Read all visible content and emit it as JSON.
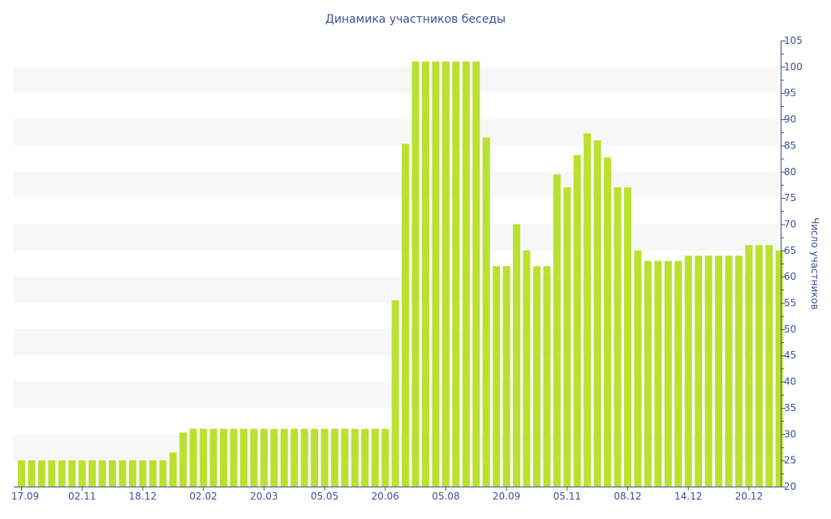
{
  "chart_data": {
    "type": "bar",
    "title": "Динамика участников беседы",
    "xlabel": "",
    "ylabel": "Число участников",
    "ylim": [
      20,
      105
    ],
    "yticks": [
      20,
      25,
      30,
      35,
      40,
      45,
      50,
      55,
      60,
      65,
      70,
      75,
      80,
      85,
      90,
      95,
      100,
      105
    ],
    "x_tick_labels": [
      {
        "bar_index": 0,
        "label": "17.09"
      },
      {
        "bar_index": 6,
        "label": "02.11"
      },
      {
        "bar_index": 12,
        "label": "18.12"
      },
      {
        "bar_index": 18,
        "label": "02.02"
      },
      {
        "bar_index": 24,
        "label": "20.03"
      },
      {
        "bar_index": 30,
        "label": "05.05"
      },
      {
        "bar_index": 36,
        "label": "20.06"
      },
      {
        "bar_index": 42,
        "label": "05.08"
      },
      {
        "bar_index": 48,
        "label": "20.09"
      },
      {
        "bar_index": 54,
        "label": "05.11"
      },
      {
        "bar_index": 60,
        "label": "08.12"
      },
      {
        "bar_index": 66,
        "label": "14.12"
      },
      {
        "bar_index": 72,
        "label": "20.12"
      }
    ],
    "values": [
      25,
      25,
      25,
      25,
      25,
      25,
      25,
      25,
      25,
      25,
      25,
      25,
      25,
      25,
      25,
      26.5,
      30.3,
      31,
      31,
      31,
      31,
      31,
      31,
      31,
      31,
      31,
      31,
      31,
      31,
      31,
      31,
      31,
      31,
      31,
      31,
      31,
      31,
      55.5,
      85.3,
      101,
      101,
      101,
      101,
      101,
      101,
      101,
      86.5,
      62,
      62,
      70,
      65,
      62,
      62,
      79.5,
      77,
      83.2,
      87.3,
      86,
      82.7,
      77,
      77,
      65,
      63,
      63,
      63,
      63,
      64,
      64,
      64,
      64,
      64,
      64,
      66,
      66,
      66,
      65
    ],
    "grid": "alternating horizontal bands",
    "y_axis_position": "right",
    "bar_color": "#bbe02f",
    "axis_color": "#3e4f9a"
  }
}
